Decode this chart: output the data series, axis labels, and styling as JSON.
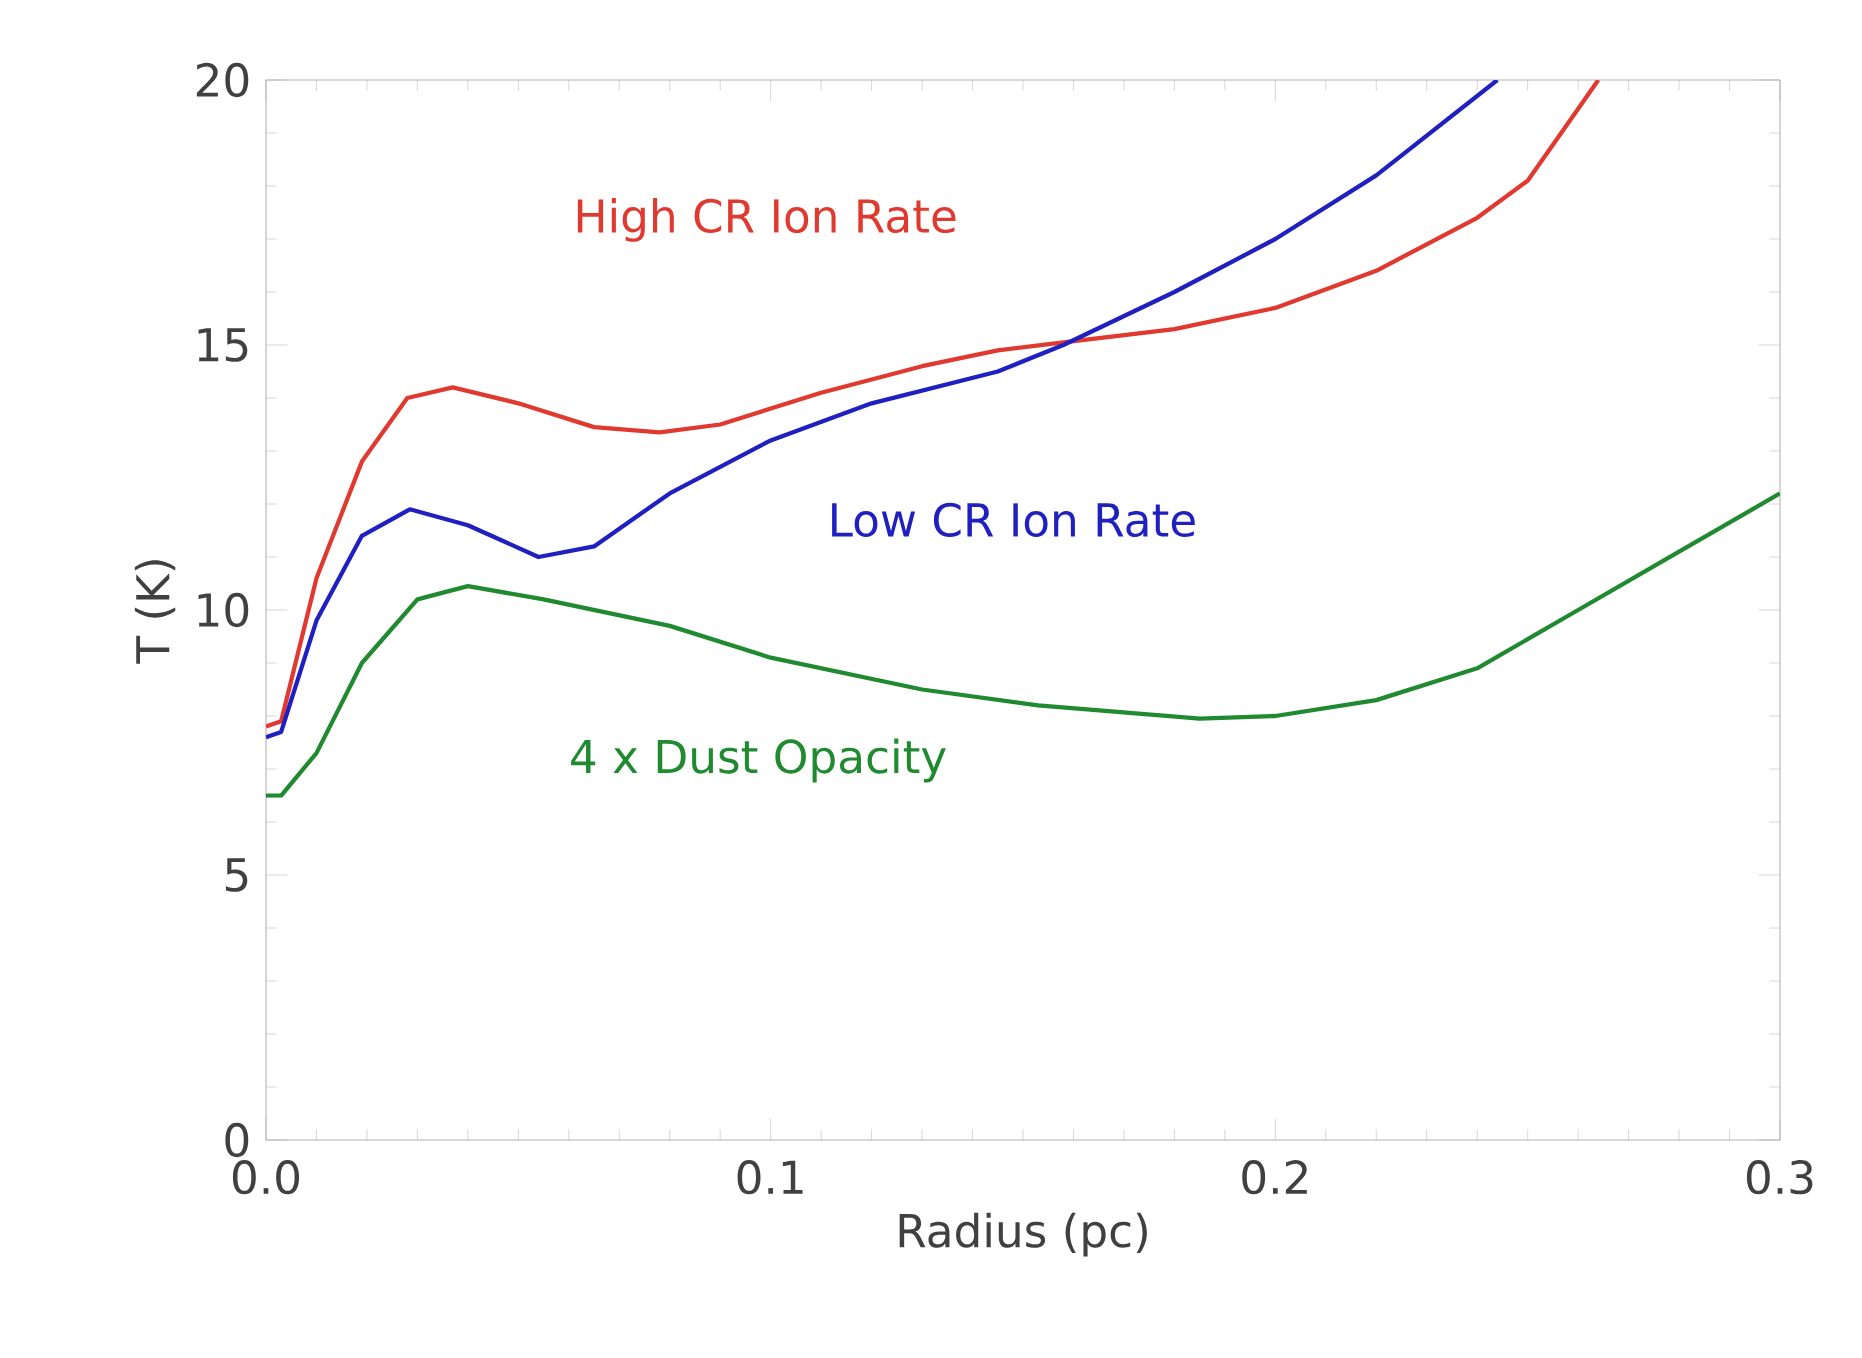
{
  "chart_data": {
    "type": "line",
    "xlabel": "Radius (pc)",
    "ylabel": "T (K)",
    "xlim": [
      0,
      0.3
    ],
    "ylim": [
      0,
      20
    ],
    "xticks": [
      {
        "value": 0,
        "label": "0.0"
      },
      0.1,
      0.2,
      0.3
    ],
    "yticks": [
      0,
      5,
      10,
      15,
      20
    ],
    "grid": false,
    "legend": false,
    "marker": "none",
    "line_style": "solid",
    "series": [
      {
        "name": "High CR Ion Rate",
        "color": "#e03a30",
        "x": [
          0,
          0.003,
          0.01,
          0.019,
          0.028,
          0.037,
          0.05,
          0.065,
          0.078,
          0.09,
          0.11,
          0.13,
          0.145,
          0.158,
          0.18,
          0.2,
          0.22,
          0.24,
          0.25,
          0.264
        ],
        "values": [
          7.8,
          7.9,
          10.6,
          12.8,
          14.0,
          14.2,
          13.9,
          13.45,
          13.35,
          13.5,
          14.1,
          14.6,
          14.9,
          15.05,
          15.3,
          15.7,
          16.4,
          17.4,
          18.1,
          20
        ]
      },
      {
        "name": "Low CR Ion Rate",
        "color": "#2020c0",
        "x": [
          0,
          0.003,
          0.01,
          0.019,
          0.0285,
          0.04,
          0.054,
          0.065,
          0.08,
          0.1,
          0.12,
          0.145,
          0.158,
          0.18,
          0.2,
          0.22,
          0.244
        ],
        "values": [
          7.6,
          7.7,
          9.8,
          11.4,
          11.9,
          11.6,
          11.0,
          11.2,
          12.2,
          13.2,
          13.9,
          14.5,
          15.0,
          16.0,
          17.0,
          18.2,
          20
        ]
      },
      {
        "name": "4 x Dust Opacity",
        "color": "#208a30",
        "x": [
          0,
          0.003,
          0.01,
          0.019,
          0.03,
          0.04,
          0.055,
          0.08,
          0.1,
          0.13,
          0.153,
          0.185,
          0.2,
          0.22,
          0.24,
          0.26,
          0.28,
          0.3
        ],
        "values": [
          6.5,
          6.5,
          7.3,
          9.0,
          10.2,
          10.45,
          10.2,
          9.7,
          9.1,
          8.5,
          8.2,
          7.95,
          8.0,
          8.3,
          8.9,
          10.0,
          11.1,
          12.2
        ]
      }
    ]
  }
}
